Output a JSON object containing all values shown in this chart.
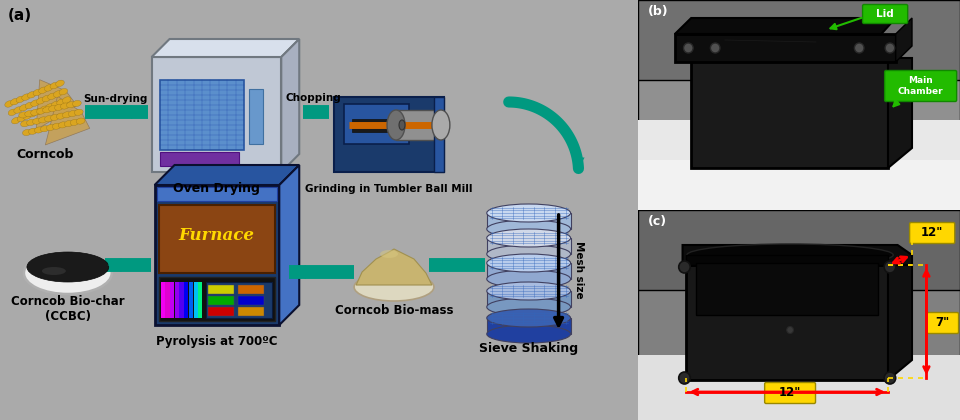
{
  "bg_color_a": "#e8f0e0",
  "teal": "#009980",
  "blue_dark": "#1a3a6b",
  "blue_mid": "#2855a0",
  "blue_light": "#4472C4",
  "furnace_brown": "#8B4513",
  "furnace_text_color": "#FFD700",
  "furnace_text": "Furnace",
  "title_a": "(a)",
  "title_b": "(b)",
  "title_c": "(c)",
  "label_corncob": "Corncob",
  "label_sun": "Sun-drying",
  "label_oven": "Oven Drying",
  "label_chopping": "Chopping",
  "label_grind": "Grinding in Tumbler Ball Mill",
  "label_mesh": "Mesh size",
  "label_sieve": "Sieve Shaking",
  "label_biomass": "Corncob Bio-mass",
  "label_pyrolysis": "Pyrolysis at 700ºC",
  "label_biochar": "Corncob Bio-char\n(CCBC)",
  "label_lid": "Lid",
  "label_mainchamber": "Main\nChamber",
  "dim_12a": "12\"",
  "dim_12b": "12\"",
  "dim_7": "7\"",
  "yellow": "#FFD700",
  "red": "#FF0000"
}
